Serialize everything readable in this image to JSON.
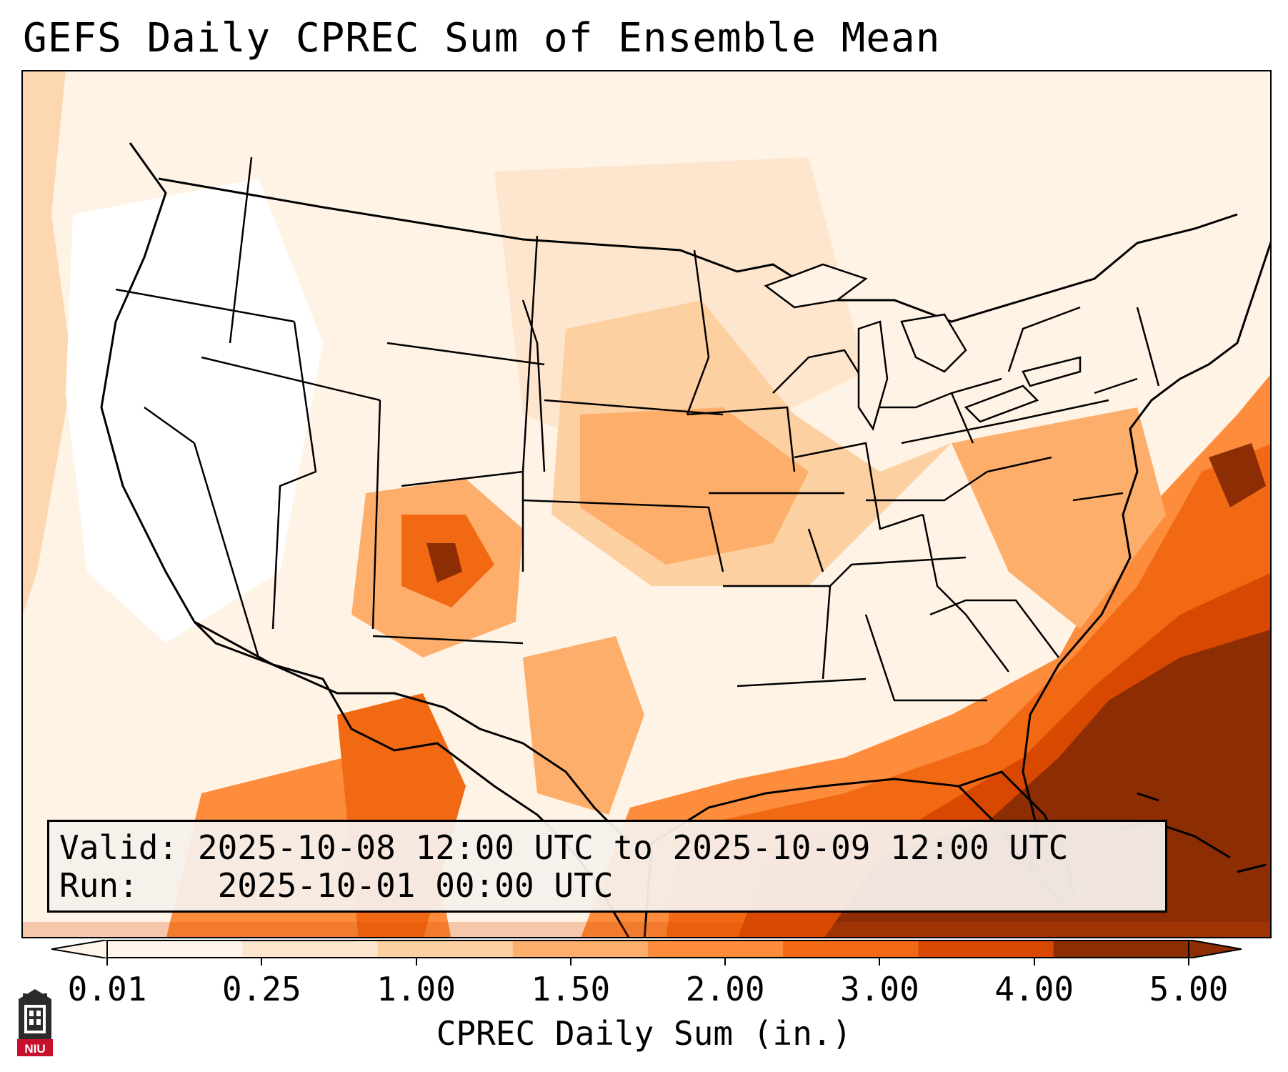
{
  "title": "GEFS Daily CPREC Sum of Ensemble Mean",
  "info_box": {
    "valid_label": "Valid:",
    "valid_value": "2025-10-08 12:00 UTC to 2025-10-09 12:00 UTC",
    "run_label": "Run:",
    "run_value": "2025-10-01 00:00 UTC"
  },
  "colorbar": {
    "label": "CPREC Daily Sum (in.)",
    "ticks": [
      "0.01",
      "0.25",
      "1.00",
      "1.50",
      "2.00",
      "3.00",
      "4.00",
      "5.00"
    ],
    "colors": [
      "#fff5eb",
      "#fee6ce",
      "#fdd0a2",
      "#fdae6b",
      "#fd8d3c",
      "#f16913",
      "#d94801",
      "#8c2d04"
    ],
    "extend": "both"
  },
  "logo": {
    "text": "NIU",
    "icon": "niu-tower-logo-icon"
  }
}
